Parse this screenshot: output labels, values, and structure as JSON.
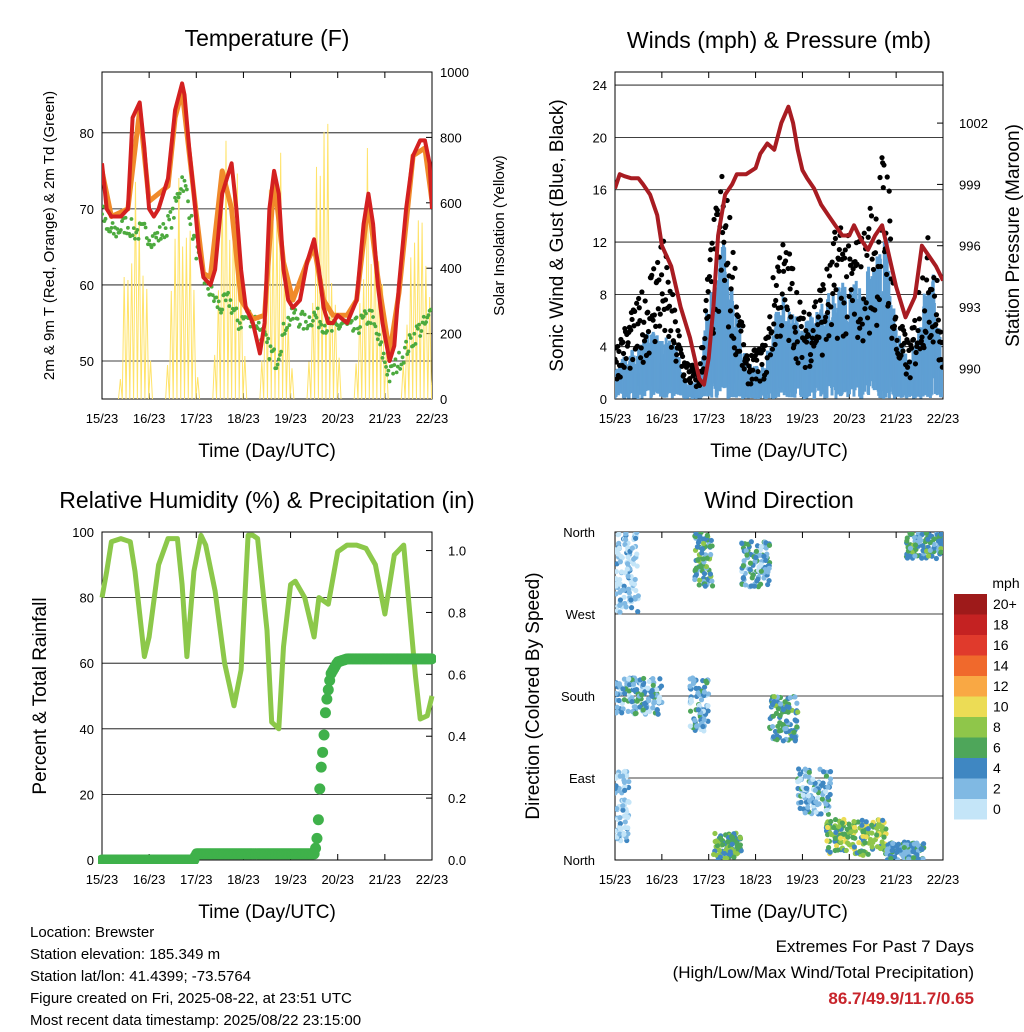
{
  "x_ticks": [
    "15/23",
    "16/23",
    "17/23",
    "18/23",
    "19/23",
    "20/23",
    "21/23",
    "22/23"
  ],
  "colors": {
    "red": "#d42020",
    "orange": "#f08a2a",
    "green": "#4caa3e",
    "yellow": "#ffe36a",
    "blue": "#5f9fd3",
    "maroon": "#a81c22",
    "rh": "#8cc84a",
    "precip": "#3fb14a"
  },
  "chart_data": [
    {
      "id": "temperature",
      "type": "line",
      "title": "Temperature (F)",
      "xlabel": "Time (Day/UTC)",
      "ylabel": "2m & 9m T (Red, Orange) & 2m Td (Green)",
      "y2label": "Solar Insolation (Yellow)",
      "xlim": [
        0,
        7
      ],
      "ylim": [
        45,
        88
      ],
      "y_ticks": [
        50,
        60,
        70,
        80
      ],
      "y2lim": [
        0,
        1000
      ],
      "y2_ticks": [
        0,
        200,
        400,
        600,
        800,
        1000
      ],
      "series": [
        {
          "name": "2m T",
          "color": "#d42020",
          "x": [
            0,
            0.1,
            0.2,
            0.4,
            0.55,
            0.65,
            0.8,
            0.9,
            1.0,
            1.1,
            1.2,
            1.4,
            1.55,
            1.7,
            1.75,
            1.85,
            1.95,
            2.05,
            2.15,
            2.3,
            2.4,
            2.55,
            2.75,
            2.85,
            2.95,
            3.05,
            3.2,
            3.35,
            3.45,
            3.55,
            3.65,
            3.75,
            3.85,
            3.95,
            4.05,
            4.2,
            4.35,
            4.5,
            4.6,
            4.7,
            4.8,
            4.9,
            5.0,
            5.2,
            5.4,
            5.55,
            5.65,
            5.75,
            5.85,
            5.95,
            6.1,
            6.2,
            6.3,
            6.45,
            6.6,
            6.75,
            6.85,
            6.95,
            7.0
          ],
          "y": [
            76,
            70,
            69,
            69,
            70,
            82,
            84,
            78,
            70,
            69,
            70,
            74,
            83,
            86.5,
            85,
            78,
            72,
            65,
            61,
            60,
            62,
            72,
            76,
            70,
            62,
            57,
            55,
            51,
            55,
            70,
            75,
            72,
            62,
            58,
            57,
            58,
            63,
            66,
            62,
            57,
            55,
            55,
            56,
            55,
            58,
            68,
            72,
            68,
            60,
            55,
            50,
            52,
            60,
            70,
            77,
            79,
            79,
            76,
            70
          ]
        },
        {
          "name": "9m T",
          "color": "#f08a2a",
          "x": [
            0,
            0.2,
            0.55,
            0.8,
            1.0,
            1.4,
            1.55,
            1.7,
            1.95,
            2.15,
            2.3,
            2.55,
            2.75,
            2.95,
            3.2,
            3.45,
            3.65,
            3.85,
            4.05,
            4.35,
            4.5,
            4.7,
            4.9,
            5.2,
            5.4,
            5.65,
            5.85,
            6.1,
            6.3,
            6.6,
            6.85,
            7.0
          ],
          "y": [
            75,
            69,
            70,
            83,
            71,
            73,
            82,
            85.5,
            72,
            61.5,
            61,
            75,
            70,
            58,
            55.5,
            56,
            74,
            63,
            58,
            63,
            65,
            58,
            56,
            56,
            58,
            71,
            61,
            51,
            59,
            77,
            78,
            71
          ]
        },
        {
          "name": "2m Td",
          "color": "#4caa3e",
          "x": [
            0,
            0.1,
            0.3,
            0.5,
            0.7,
            0.9,
            1.1,
            1.3,
            1.5,
            1.7,
            1.8,
            1.95,
            2.1,
            2.3,
            2.5,
            2.7,
            2.9,
            3.1,
            3.3,
            3.5,
            3.7,
            3.9,
            4.1,
            4.3,
            4.5,
            4.7,
            4.9,
            5.1,
            5.3,
            5.5,
            5.7,
            5.9,
            6.1,
            6.3,
            6.5,
            6.7,
            6.9,
            7.0
          ],
          "y": [
            70,
            67,
            67,
            68,
            67,
            67,
            66,
            67,
            69,
            74,
            72,
            66,
            62,
            59,
            57,
            58,
            55,
            56,
            55,
            52,
            50,
            55,
            56,
            55,
            56,
            55,
            54,
            55,
            54,
            55,
            56,
            52,
            48,
            50,
            52,
            54,
            55,
            57
          ]
        },
        {
          "name": "Solar Insolation",
          "color": "#ffe36a",
          "axis": "y2",
          "peaks": [
            0.7,
            1.7,
            2.7,
            3.7,
            4.7,
            5.7,
            6.7
          ],
          "peak_values": [
            780,
            800,
            940,
            880,
            960,
            860,
            840
          ]
        }
      ]
    },
    {
      "id": "winds",
      "type": "scatter",
      "title": "Winds (mph) & Pressure (mb)",
      "xlabel": "Time (Day/UTC)",
      "ylabel": "Sonic Wind & Gust (Blue, Black)",
      "y2label": "Station Pressure (Maroon)",
      "xlim": [
        0,
        7
      ],
      "ylim": [
        0,
        25
      ],
      "y_ticks": [
        0,
        4,
        8,
        12,
        16,
        20,
        24
      ],
      "y2lim": [
        988.5,
        1004.5
      ],
      "y2_ticks": [
        990,
        993,
        996,
        999,
        1002
      ],
      "series": [
        {
          "name": "Pressure",
          "color": "#a81c22",
          "axis": "y2",
          "x": [
            0,
            0.1,
            0.2,
            0.35,
            0.5,
            0.6,
            0.75,
            0.9,
            1.0,
            1.2,
            1.4,
            1.6,
            1.8,
            1.9,
            2.0,
            2.1,
            2.2,
            2.35,
            2.5,
            2.6,
            2.8,
            3.0,
            3.1,
            3.25,
            3.4,
            3.55,
            3.7,
            3.8,
            3.9,
            4.0,
            4.1,
            4.25,
            4.4,
            4.55,
            4.7,
            4.85,
            5.0,
            5.1,
            5.25,
            5.4,
            5.55,
            5.7,
            5.85,
            6.0,
            6.2,
            6.4,
            6.55,
            6.7,
            6.85,
            7.0
          ],
          "y": [
            998.8,
            999.5,
            999.4,
            999.3,
            999.3,
            999.0,
            998.5,
            997.5,
            996.0,
            995.0,
            993.0,
            991.5,
            989.5,
            989.2,
            990.5,
            993.0,
            996.5,
            998.5,
            999.0,
            999.5,
            999.5,
            999.8,
            1000.5,
            1001.0,
            1000.7,
            1002.0,
            1002.8,
            1002.0,
            1000.7,
            999.7,
            999.3,
            998.8,
            998.0,
            997.5,
            997.0,
            996.5,
            996.5,
            997.0,
            996.3,
            995.8,
            996.5,
            997.0,
            995.5,
            994.0,
            992.5,
            993.5,
            996.0,
            995.5,
            995.0,
            994.3
          ]
        },
        {
          "name": "Gust",
          "color": "#000000",
          "envelope": {
            "x": [
              0,
              0.5,
              0.8,
              1.0,
              1.3,
              1.5,
              1.8,
              2.0,
              2.3,
              2.6,
              2.8,
              3.2,
              3.5,
              3.8,
              4.0,
              4.3,
              4.6,
              4.8,
              5.0,
              5.3,
              5.6,
              5.8,
              6.0,
              6.3,
              6.6,
              6.8,
              7.0
            ],
            "y": [
              4,
              7,
              10,
              12,
              6,
              3,
              2,
              10,
              17,
              9,
              3,
              4,
              12,
              10,
              6,
              8,
              10,
              14,
              11,
              12,
              16,
              19,
              6,
              4,
              11,
              12,
              3
            ]
          }
        },
        {
          "name": "Wind",
          "color": "#5f9fd3",
          "envelope": {
            "x": [
              0,
              0.5,
              0.8,
              1.0,
              1.3,
              1.5,
              1.8,
              2.0,
              2.3,
              2.6,
              2.8,
              3.2,
              3.5,
              3.8,
              4.0,
              4.3,
              4.6,
              4.8,
              5.0,
              5.3,
              5.6,
              5.8,
              6.0,
              6.3,
              6.6,
              6.8,
              7.0
            ],
            "y": [
              2,
              3,
              4,
              4,
              3,
              1,
              1,
              6,
              9,
              5,
              2,
              2,
              6,
              5,
              4,
              5,
              6,
              7,
              6,
              7,
              8,
              9,
              4,
              2,
              6,
              7,
              2
            ]
          }
        }
      ]
    },
    {
      "id": "rh",
      "type": "line",
      "title": "Relative Humidity (%) & Precipitation (in)",
      "xlabel": "Time (Day/UTC)",
      "ylabel": "Percent & Total Rainfall",
      "xlim": [
        0,
        7
      ],
      "ylim": [
        0,
        100
      ],
      "y_ticks": [
        0,
        20,
        40,
        60,
        80,
        100
      ],
      "y2lim": [
        0,
        1.06
      ],
      "y2_ticks": [
        "0.0",
        "0.2",
        "0.4",
        "0.6",
        "0.8",
        "1.0"
      ],
      "series": [
        {
          "name": "RH",
          "color": "#8cc84a",
          "x": [
            0,
            0.1,
            0.2,
            0.4,
            0.6,
            0.7,
            0.8,
            0.9,
            1.0,
            1.2,
            1.4,
            1.6,
            1.7,
            1.8,
            1.95,
            2.1,
            2.2,
            2.4,
            2.6,
            2.8,
            2.95,
            3.1,
            3.2,
            3.3,
            3.5,
            3.6,
            3.75,
            3.85,
            4.0,
            4.1,
            4.3,
            4.5,
            4.6,
            4.8,
            5.0,
            5.2,
            5.4,
            5.6,
            5.8,
            6.0,
            6.2,
            6.4,
            6.5,
            6.65,
            6.75,
            6.9,
            7.0
          ],
          "y": [
            80,
            88,
            97,
            98,
            97,
            88,
            75,
            62,
            68,
            90,
            98,
            98,
            84,
            62,
            88,
            99,
            96,
            82,
            60,
            47,
            58,
            99,
            99,
            98,
            70,
            42,
            40,
            65,
            84,
            85,
            80,
            68,
            80,
            78,
            94,
            96,
            96,
            95,
            90,
            75,
            93,
            96,
            80,
            56,
            43,
            44,
            50
          ]
        },
        {
          "name": "Precipitation",
          "color": "#3fb14a",
          "axis": "y2",
          "x": [
            0,
            1.95,
            2.0,
            4.4,
            4.5,
            4.55,
            4.6,
            4.62,
            4.65,
            4.7,
            4.75,
            4.85,
            5.0,
            5.2,
            5.5,
            7.0
          ],
          "y": [
            0,
            0,
            0.02,
            0.02,
            0.02,
            0.05,
            0.15,
            0.23,
            0.3,
            0.38,
            0.5,
            0.6,
            0.64,
            0.65,
            0.65,
            0.65
          ]
        }
      ]
    },
    {
      "id": "direction",
      "type": "scatter",
      "title": "Wind Direction",
      "xlabel": "Time (Day/UTC)",
      "ylabel": "Direction (Colored By Speed)",
      "xlim": [
        0,
        7
      ],
      "y_ticks": [
        "North",
        "East",
        "South",
        "West",
        "North"
      ],
      "legend": {
        "title": "mph",
        "labels": [
          "20+",
          "18",
          "16",
          "14",
          "12",
          "10",
          "8",
          "6",
          "4",
          "2",
          "0"
        ],
        "colors": [
          "#9e1a1a",
          "#c42222",
          "#e03a2c",
          "#f0692c",
          "#f9a844",
          "#ecdc55",
          "#8fc64a",
          "#4ea65a",
          "#3f87c2",
          "#80b9e3",
          "#c4e5f8"
        ]
      },
      "series": [
        {
          "name": "Direction",
          "clusters": [
            {
              "x": [
                0,
                0.5
              ],
              "y": [
                270,
                360
              ],
              "speed": 1
            },
            {
              "x": [
                0,
                1.0
              ],
              "y": [
                160,
                200
              ],
              "speed": 3
            },
            {
              "x": [
                1.6,
                2.0
              ],
              "y": [
                140,
                200
              ],
              "speed": 3
            },
            {
              "x": [
                1.7,
                2.1
              ],
              "y": [
                300,
                360
              ],
              "speed": 5
            },
            {
              "x": [
                2.7,
                3.3
              ],
              "y": [
                300,
                350
              ],
              "speed": 3
            },
            {
              "x": [
                3.3,
                3.9
              ],
              "y": [
                130,
                180
              ],
              "speed": 5
            },
            {
              "x": [
                3.9,
                4.6
              ],
              "y": [
                50,
                100
              ],
              "speed": 3
            },
            {
              "x": [
                4.5,
                5.8
              ],
              "y": [
                5,
                45
              ],
              "speed": 7
            },
            {
              "x": [
                5.8,
                6.6
              ],
              "y": [
                0,
                20
              ],
              "speed": 4
            },
            {
              "x": [
                6.2,
                7.0
              ],
              "y": [
                330,
                360
              ],
              "speed": 5
            },
            {
              "x": [
                2.1,
                2.7
              ],
              "y": [
                0,
                30
              ],
              "speed": 6
            },
            {
              "x": [
                0,
                0.3
              ],
              "y": [
                20,
                100
              ],
              "speed": 1
            }
          ]
        }
      ]
    }
  ],
  "info": {
    "location": "Location: Brewster",
    "elevation": "Station elevation: 185.349 m",
    "latlon": "Station lat/lon: 41.4399; -73.5764",
    "created": "Figure created on Fri, 2025-08-22, at 23:51 UTC",
    "recent": "Most recent data timestamp: 2025/08/22 23:15:00"
  },
  "extremes": {
    "title": "Extremes For Past 7 Days",
    "subtitle": "(High/Low/Max Wind/Total Precipitation)",
    "values": "86.7/49.9/11.7/0.65"
  }
}
